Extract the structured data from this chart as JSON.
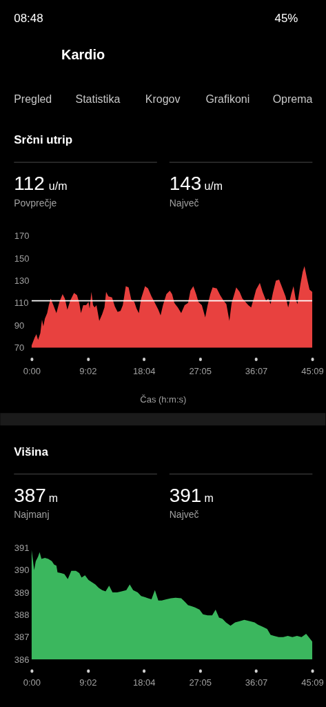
{
  "chart_data": [
    {
      "type": "other",
      "title": "Kardio",
      "annotations": [
        "08:48",
        "45%",
        "Pregled",
        "Statistika",
        "Krogov",
        "Grafikoni",
        "Oprema"
      ]
    },
    {
      "type": "area",
      "title": "Srčni utrip",
      "annotations": [
        "112",
        "u/m",
        "Povprečje",
        "143",
        "u/m",
        "Največ"
      ],
      "xlabel": "Čas (h:m:s)",
      "x": [
        0,
        29,
        46,
        62,
        84,
        100,
        113,
        128,
        150,
        166,
        184,
        210,
        239,
        268,
        299,
        321,
        345,
        372,
        409,
        438,
        460,
        476,
        498,
        526,
        549,
        560,
        577,
        593,
        608,
        626,
        653,
        681,
        703,
        719,
        741,
        776,
        803,
        830,
        858,
        880,
        909,
        936,
        962,
        991,
        1013,
        1035,
        1057,
        1095,
        1124,
        1157,
        1190,
        1223,
        1245,
        1268,
        1301,
        1334,
        1356,
        1378,
        1411,
        1444,
        1477,
        1510,
        1533,
        1561,
        1588,
        1610,
        1643,
        1676,
        1699,
        1725,
        1747,
        1787,
        1820,
        1853,
        1880,
        1909,
        1931,
        1960,
        1975,
        2008,
        2035,
        2064,
        2092,
        2119,
        2141,
        2167,
        2203,
        2230,
        2263,
        2285,
        2307,
        2329,
        2358,
        2389,
        2418,
        2451,
        2477,
        2506,
        2528,
        2550,
        2566,
        2595,
        2617,
        2634,
        2661,
        2683,
        2709
      ],
      "series": [
        {
          "color": "#e8413f",
          "values": [
            72,
            79,
            82,
            77,
            83,
            95,
            89,
            96,
            101,
            108,
            114,
            108,
            101,
            111,
            118,
            114,
            104,
            112,
            119,
            117,
            110,
            101,
            108,
            108,
            111,
            105,
            120,
            108,
            106,
            108,
            94,
            100,
            106,
            120,
            116,
            115,
            107,
            102,
            103,
            108,
            125,
            124,
            113,
            111,
            105,
            101,
            114,
            125,
            123,
            116,
            110,
            104,
            99,
            108,
            118,
            121,
            118,
            110,
            106,
            101,
            108,
            110,
            121,
            125,
            118,
            111,
            108,
            97,
            108,
            118,
            124,
            123,
            117,
            112,
            109,
            94,
            110,
            119,
            124,
            120,
            114,
            111,
            108,
            106,
            113,
            122,
            128,
            120,
            112,
            114,
            109,
            119,
            130,
            131,
            124,
            116,
            106,
            118,
            125,
            113,
            109,
            127,
            138,
            143,
            131,
            122,
            120
          ]
        }
      ],
      "xlim": [
        0,
        2709
      ],
      "xticks": [
        {
          "value": 0,
          "label": "0:00"
        },
        {
          "value": 542,
          "label": "9:02"
        },
        {
          "value": 1084,
          "label": "18:04"
        },
        {
          "value": 1625,
          "label": "27:05"
        },
        {
          "value": 2167,
          "label": "36:07"
        },
        {
          "value": 2709,
          "label": "45:09"
        }
      ],
      "ylim": [
        70,
        170
      ],
      "yticks": [
        70,
        90,
        110,
        130,
        150,
        170
      ],
      "ref_lines": [
        {
          "axis": "y",
          "value": 112,
          "color": "#ffffff"
        }
      ]
    },
    {
      "type": "area",
      "title": "Višina",
      "annotations": [
        "387",
        "m",
        "Najmanj",
        "391",
        "m",
        "Največ"
      ],
      "x": [
        0,
        11,
        24,
        40,
        62,
        77,
        95,
        128,
        161,
        195,
        217,
        239,
        250,
        283,
        316,
        349,
        383,
        427,
        460,
        482,
        515,
        549,
        582,
        615,
        648,
        681,
        714,
        748,
        781,
        825,
        869,
        914,
        947,
        980,
        1024,
        1057,
        1091,
        1124,
        1157,
        1190,
        1223,
        1256,
        1300,
        1345,
        1389,
        1444,
        1477,
        1510,
        1544,
        1577,
        1621,
        1654,
        1699,
        1743,
        1776,
        1809,
        1842,
        1876,
        1920,
        1964,
        2008,
        2053,
        2108,
        2152,
        2185,
        2230,
        2274,
        2307,
        2340,
        2385,
        2429,
        2473,
        2517,
        2562,
        2606,
        2650,
        2683,
        2709
      ],
      "series": [
        {
          "color": "#3bb75e",
          "values": [
            390.9,
            390.5,
            390.0,
            390.4,
            390.6,
            390.8,
            390.5,
            390.55,
            390.5,
            390.4,
            390.25,
            390.2,
            389.9,
            389.87,
            389.82,
            389.6,
            389.97,
            389.97,
            389.87,
            389.67,
            389.77,
            389.56,
            389.46,
            389.36,
            389.2,
            389.1,
            389.05,
            389.3,
            389.0,
            389.0,
            389.05,
            389.1,
            389.36,
            389.1,
            389.0,
            388.84,
            388.79,
            388.74,
            388.69,
            389.1,
            388.64,
            388.64,
            388.69,
            388.74,
            388.76,
            388.74,
            388.59,
            388.43,
            388.38,
            388.33,
            388.23,
            388.02,
            387.97,
            387.97,
            388.23,
            387.87,
            387.82,
            387.66,
            387.51,
            387.66,
            387.71,
            387.77,
            387.71,
            387.66,
            387.56,
            387.46,
            387.36,
            387.1,
            387.05,
            387.0,
            387.0,
            387.05,
            387.0,
            387.05,
            387.0,
            387.15,
            386.95,
            386.8
          ]
        }
      ],
      "xlim": [
        0,
        2709
      ],
      "xticks": [
        {
          "value": 0,
          "label": "0:00"
        },
        {
          "value": 542,
          "label": "9:02"
        },
        {
          "value": 1084,
          "label": "18:04"
        },
        {
          "value": 1625,
          "label": "27:05"
        },
        {
          "value": 2167,
          "label": "36:07"
        },
        {
          "value": 2709,
          "label": "45:09"
        }
      ],
      "ylim": [
        386,
        391
      ],
      "yticks": [
        386,
        387,
        388,
        389,
        390,
        391
      ]
    }
  ]
}
